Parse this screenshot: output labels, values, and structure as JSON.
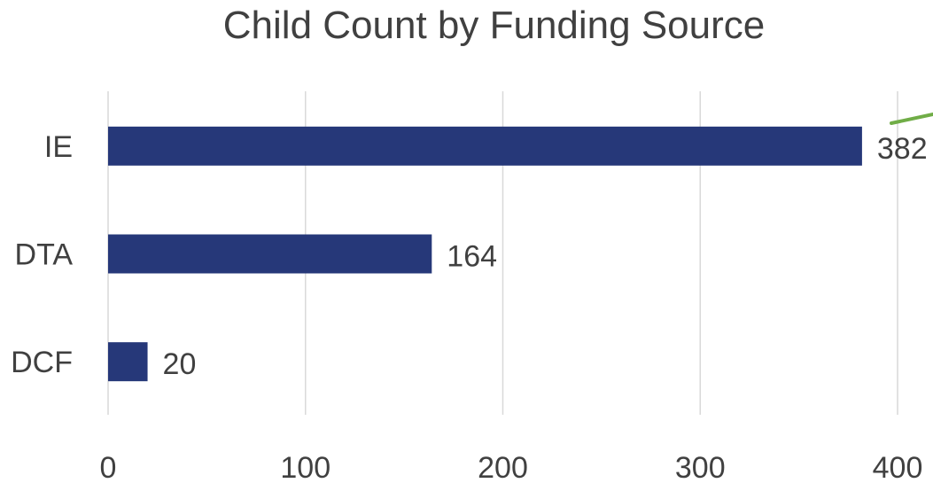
{
  "chart_data": {
    "type": "bar",
    "orientation": "horizontal",
    "title": "Child Count by Funding Source",
    "categories": [
      "IE",
      "DTA",
      "DCF"
    ],
    "values": [
      382,
      164,
      20
    ],
    "xlim": [
      0,
      400
    ],
    "xticks": [
      0,
      100,
      200,
      300,
      400
    ],
    "xlabel": "",
    "ylabel": "",
    "grid": "vertical",
    "legend": "none",
    "data_labels": true,
    "colors": {
      "bar": "#263879",
      "grid": "#d9d9d9",
      "text": "#404040",
      "accent_line": "#70ad47"
    }
  }
}
